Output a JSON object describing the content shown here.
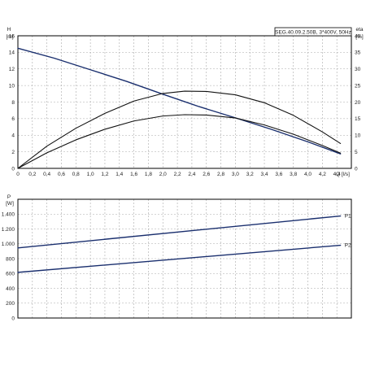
{
  "chart_data": [
    {
      "type": "line",
      "title": "SEG.40.09.2.50B, 3*400V, 50Hz",
      "x_axis": {
        "label": "Q [l/s]",
        "range": [
          0,
          4.6
        ],
        "ticks": [
          0,
          0.2,
          0.4,
          0.6,
          0.8,
          1.0,
          1.2,
          1.4,
          1.6,
          1.8,
          2.0,
          2.2,
          2.4,
          2.6,
          2.8,
          3.0,
          3.2,
          3.4,
          3.6,
          3.8,
          4.0,
          4.2,
          4.4
        ],
        "tick_labels": [
          "0",
          "0,2",
          "0,4",
          "0,6",
          "0,8",
          "1,0",
          "1,2",
          "1,4",
          "1,6",
          "1,8",
          "2,0",
          "2,2",
          "2,4",
          "2,6",
          "2,8",
          "3,0",
          "3,2",
          "3,4",
          "3,6",
          "3,8",
          "4,0",
          "4,2",
          "4,4"
        ]
      },
      "y_axis_left": {
        "label_top": "H",
        "label_unit": "[m]",
        "range": [
          0,
          16
        ],
        "ticks": [
          0,
          2,
          4,
          6,
          8,
          10,
          12,
          14,
          16
        ],
        "tick_labels": [
          "0",
          "2",
          "4",
          "6",
          "8",
          "10",
          "12",
          "14",
          "16"
        ]
      },
      "y_axis_right": {
        "label_top": "eta",
        "label_unit": "[%]",
        "range": [
          0,
          40
        ],
        "ticks": [
          0,
          5,
          10,
          15,
          20,
          25,
          30,
          35,
          40
        ],
        "tick_labels": [
          "0",
          "5",
          "10",
          "15",
          "20",
          "25",
          "30",
          "35",
          "40"
        ]
      },
      "grid": true,
      "series": [
        {
          "axis": "left",
          "color": "#1a2f6e",
          "points": [
            [
              0,
              14.5
            ],
            [
              0.5,
              13.3
            ],
            [
              1.0,
              11.9
            ],
            [
              1.5,
              10.5
            ],
            [
              2.0,
              8.95
            ],
            [
              2.5,
              7.45
            ],
            [
              3.0,
              6.1
            ],
            [
              3.5,
              4.7
            ],
            [
              4.0,
              3.2
            ],
            [
              4.45,
              1.75
            ]
          ]
        },
        {
          "axis": "right",
          "color": "#111111",
          "points": [
            [
              0,
              0
            ],
            [
              0.4,
              6.7
            ],
            [
              0.8,
              12.1
            ],
            [
              1.2,
              16.6
            ],
            [
              1.6,
              20.3
            ],
            [
              2.0,
              22.6
            ],
            [
              2.3,
              23.3
            ],
            [
              2.6,
              23.2
            ],
            [
              3.0,
              22.2
            ],
            [
              3.4,
              19.8
            ],
            [
              3.8,
              16.0
            ],
            [
              4.2,
              11.0
            ],
            [
              4.45,
              7.5
            ]
          ]
        },
        {
          "axis": "right",
          "color": "#111111",
          "points": [
            [
              0,
              0
            ],
            [
              0.4,
              4.7
            ],
            [
              0.8,
              8.6
            ],
            [
              1.2,
              11.8
            ],
            [
              1.6,
              14.3
            ],
            [
              2.0,
              15.8
            ],
            [
              2.3,
              16.2
            ],
            [
              2.6,
              16.1
            ],
            [
              3.0,
              15.2
            ],
            [
              3.4,
              13.1
            ],
            [
              3.8,
              10.3
            ],
            [
              4.2,
              6.9
            ],
            [
              4.45,
              4.6
            ]
          ]
        }
      ]
    },
    {
      "type": "line",
      "title": "",
      "x_axis": {
        "label": "",
        "range": [
          0,
          4.6
        ],
        "ticks": [
          0,
          0.2,
          0.4,
          0.6,
          0.8,
          1.0,
          1.2,
          1.4,
          1.6,
          1.8,
          2.0,
          2.2,
          2.4,
          2.6,
          2.8,
          3.0,
          3.2,
          3.4,
          3.6,
          3.8,
          4.0,
          4.2,
          4.4
        ],
        "tick_labels": []
      },
      "y_axis_left": {
        "label_top": "P",
        "label_unit": "[W]",
        "range": [
          0,
          1600
        ],
        "ticks": [
          0,
          200,
          400,
          600,
          800,
          1000,
          1200,
          1400,
          1600
        ],
        "tick_labels": [
          "0",
          "200",
          "400",
          "600",
          "800",
          "1.000",
          "1.200",
          "1.400",
          ""
        ]
      },
      "grid": true,
      "series": [
        {
          "name": "P1",
          "axis": "left",
          "color": "#1a2f6e",
          "points": [
            [
              0,
              945
            ],
            [
              4.45,
              1375
            ]
          ]
        },
        {
          "name": "P2",
          "axis": "left",
          "color": "#1a2f6e",
          "points": [
            [
              0,
              615
            ],
            [
              4.45,
              980
            ]
          ]
        }
      ]
    }
  ]
}
